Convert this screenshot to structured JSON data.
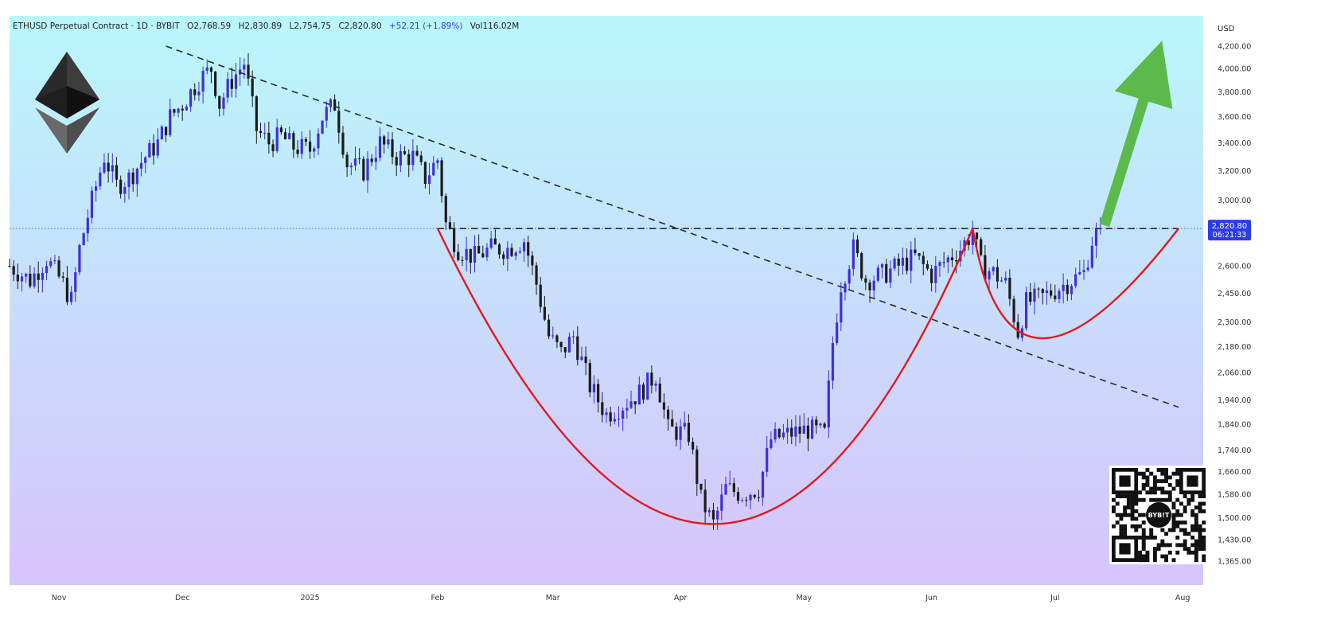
{
  "header": {
    "symbol": "ETHUSD Perpetual Contract · 1D · BYBIT",
    "open": "O2,768.59",
    "high": "H2,830.89",
    "low": "L2,754.75",
    "close": "C2,820.80",
    "change": "+52.21 (+1.89%)",
    "volume": "Vol116.02M"
  },
  "price_axis": {
    "currency": "USD",
    "last_price": "2,820.80",
    "countdown": "06:21:33"
  },
  "colors": {
    "up": "#3f2fd6",
    "down": "#1b1b1b",
    "cup_curve": "#e3171d",
    "trendline": "#2b2b2b",
    "arrow": "#5cba4d",
    "last_price_tag": "#2d3be8",
    "bg_top": "#b9f7fb",
    "bg_bottom": "#d7c4fb"
  },
  "icons": [
    "ethereum-logo-icon",
    "up-arrow-icon",
    "bybit-qr-code-icon"
  ],
  "qr_label": "BYB!T",
  "chart_data": {
    "type": "candlestick",
    "title": "ETHUSD Perpetual Contract · 1D · BYBIT",
    "y_scale": "log",
    "ylim": [
      1330,
      4300
    ],
    "xlim": [
      "2024-10-20",
      "2025-08-06"
    ],
    "y_ticks": [
      {
        "value": 4200,
        "label": "4,200.00"
      },
      {
        "value": 4000,
        "label": "4,000.00"
      },
      {
        "value": 3800,
        "label": "3,800.00"
      },
      {
        "value": 3600,
        "label": "3,600.00"
      },
      {
        "value": 3400,
        "label": "3,400.00"
      },
      {
        "value": 3200,
        "label": "3,200.00"
      },
      {
        "value": 3000,
        "label": "3,000.00"
      },
      {
        "value": 2600,
        "label": "2,600.00"
      },
      {
        "value": 2450,
        "label": "2,450.00"
      },
      {
        "value": 2300,
        "label": "2,300.00"
      },
      {
        "value": 2180,
        "label": "2,180.00"
      },
      {
        "value": 2060,
        "label": "2,060.00"
      },
      {
        "value": 1940,
        "label": "1,940.00"
      },
      {
        "value": 1840,
        "label": "1,840.00"
      },
      {
        "value": 1740,
        "label": "1,740.00"
      },
      {
        "value": 1660,
        "label": "1,660.00"
      },
      {
        "value": 1580,
        "label": "1,580.00"
      },
      {
        "value": 1500,
        "label": "1,500.00"
      },
      {
        "value": 1430,
        "label": "1,430.00"
      },
      {
        "value": 1365,
        "label": "1,365.00"
      }
    ],
    "x_ticks": [
      {
        "date": "2024-11-01",
        "label": "Nov"
      },
      {
        "date": "2024-12-01",
        "label": "Dec"
      },
      {
        "date": "2025-01-01",
        "label": "2025"
      },
      {
        "date": "2025-02-01",
        "label": "Feb"
      },
      {
        "date": "2025-03-01",
        "label": "Mar"
      },
      {
        "date": "2025-04-01",
        "label": "Apr"
      },
      {
        "date": "2025-05-01",
        "label": "May"
      },
      {
        "date": "2025-06-01",
        "label": "Jun"
      },
      {
        "date": "2025-07-01",
        "label": "Jul"
      },
      {
        "date": "2025-08-01",
        "label": "Aug"
      }
    ],
    "close_path": [
      [
        "2024-10-20",
        2600
      ],
      [
        "2024-10-25",
        2520
      ],
      [
        "2024-10-29",
        2640
      ],
      [
        "2024-11-02",
        2500
      ],
      [
        "2024-11-04",
        2410
      ],
      [
        "2024-11-06",
        2700
      ],
      [
        "2024-11-08",
        2900
      ],
      [
        "2024-11-12",
        3300
      ],
      [
        "2024-11-15",
        3100
      ],
      [
        "2024-11-18",
        3150
      ],
      [
        "2024-11-22",
        3300
      ],
      [
        "2024-11-25",
        3400
      ],
      [
        "2024-11-28",
        3600
      ],
      [
        "2024-12-01",
        3700
      ],
      [
        "2024-12-05",
        3900
      ],
      [
        "2024-12-08",
        4000
      ],
      [
        "2024-12-10",
        3700
      ],
      [
        "2024-12-13",
        3900
      ],
      [
        "2024-12-16",
        4050
      ],
      [
        "2024-12-19",
        3500
      ],
      [
        "2024-12-22",
        3400
      ],
      [
        "2024-12-25",
        3450
      ],
      [
        "2024-12-28",
        3370
      ],
      [
        "2025-01-01",
        3350
      ],
      [
        "2025-01-04",
        3600
      ],
      [
        "2025-01-07",
        3700
      ],
      [
        "2025-01-10",
        3250
      ],
      [
        "2025-01-14",
        3200
      ],
      [
        "2025-01-18",
        3400
      ],
      [
        "2025-01-22",
        3300
      ],
      [
        "2025-01-26",
        3300
      ],
      [
        "2025-01-29",
        3150
      ],
      [
        "2025-02-01",
        3280
      ],
      [
        "2025-02-03",
        2850
      ],
      [
        "2025-02-06",
        2700
      ],
      [
        "2025-02-10",
        2650
      ],
      [
        "2025-02-14",
        2700
      ],
      [
        "2025-02-18",
        2700
      ],
      [
        "2025-02-22",
        2750
      ],
      [
        "2025-02-25",
        2500
      ],
      [
        "2025-02-28",
        2230
      ],
      [
        "2025-03-03",
        2150
      ],
      [
        "2025-03-06",
        2230
      ],
      [
        "2025-03-10",
        2000
      ],
      [
        "2025-03-14",
        1880
      ],
      [
        "2025-03-18",
        1920
      ],
      [
        "2025-03-22",
        1970
      ],
      [
        "2025-03-26",
        2050
      ],
      [
        "2025-03-29",
        1820
      ],
      [
        "2025-04-03",
        1800
      ],
      [
        "2025-04-06",
        1560
      ],
      [
        "2025-04-09",
        1480
      ],
      [
        "2025-04-12",
        1600
      ],
      [
        "2025-04-16",
        1580
      ],
      [
        "2025-04-20",
        1600
      ],
      [
        "2025-04-23",
        1780
      ],
      [
        "2025-04-27",
        1800
      ],
      [
        "2025-05-02",
        1820
      ],
      [
        "2025-05-06",
        1800
      ],
      [
        "2025-05-08",
        2200
      ],
      [
        "2025-05-10",
        2500
      ],
      [
        "2025-05-13",
        2700
      ],
      [
        "2025-05-16",
        2520
      ],
      [
        "2025-05-20",
        2550
      ],
      [
        "2025-05-24",
        2600
      ],
      [
        "2025-05-28",
        2650
      ],
      [
        "2025-06-01",
        2550
      ],
      [
        "2025-06-04",
        2620
      ],
      [
        "2025-06-08",
        2700
      ],
      [
        "2025-06-11",
        2800
      ],
      [
        "2025-06-13",
        2600
      ],
      [
        "2025-06-16",
        2560
      ],
      [
        "2025-06-19",
        2500
      ],
      [
        "2025-06-22",
        2250
      ],
      [
        "2025-06-24",
        2400
      ],
      [
        "2025-06-28",
        2430
      ],
      [
        "2025-07-02",
        2480
      ],
      [
        "2025-07-05",
        2520
      ],
      [
        "2025-07-08",
        2560
      ],
      [
        "2025-07-10",
        2750
      ],
      [
        "2025-07-12",
        2820.8
      ]
    ],
    "annotations": {
      "resistance_level": 2820.8,
      "resistance_start": "2025-02-01",
      "resistance_end": "2025-07-31",
      "descending_trendline": [
        [
          "2024-11-27",
          4200
        ],
        [
          "2025-07-31",
          1910
        ]
      ],
      "cup": {
        "start": [
          "2025-02-01",
          2820.8
        ],
        "bottom": [
          "2025-04-09",
          1480
        ],
        "end": [
          "2025-06-11",
          2820.8
        ]
      },
      "handle": {
        "start": [
          "2025-06-11",
          2820.8
        ],
        "bottom": [
          "2025-06-28",
          2220
        ],
        "end": [
          "2025-07-31",
          2820.8
        ]
      },
      "breakout_arrow": {
        "from": [
          "2025-07-13",
          2840
        ],
        "to": [
          "2025-07-27",
          4250
        ]
      }
    }
  }
}
